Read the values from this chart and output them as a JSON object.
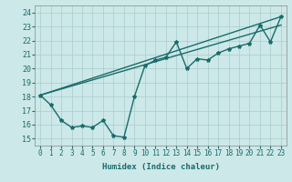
{
  "xlabel": "Humidex (Indice chaleur)",
  "bg_color": "#cce8e8",
  "grid_color": "#aacccc",
  "line_color": "#1a6b6b",
  "xlim": [
    -0.5,
    23.5
  ],
  "ylim": [
    14.5,
    24.5
  ],
  "xticks": [
    0,
    1,
    2,
    3,
    4,
    5,
    6,
    7,
    8,
    9,
    10,
    11,
    12,
    13,
    14,
    15,
    16,
    17,
    18,
    19,
    20,
    21,
    22,
    23
  ],
  "yticks": [
    15,
    16,
    17,
    18,
    19,
    20,
    21,
    22,
    23,
    24
  ],
  "series_zigzag": {
    "x": [
      0,
      1,
      2,
      3,
      4,
      5,
      6,
      7,
      8,
      9,
      10,
      11,
      12,
      13,
      14,
      15,
      16,
      17,
      18,
      19,
      20,
      21,
      22,
      23
    ],
    "y": [
      18.1,
      17.4,
      16.3,
      15.8,
      15.9,
      15.8,
      16.3,
      15.2,
      15.1,
      18.0,
      20.2,
      20.6,
      20.8,
      21.9,
      20.0,
      20.7,
      20.6,
      21.1,
      21.4,
      21.6,
      21.8,
      23.1,
      21.9,
      23.7
    ]
  },
  "series_trend1": {
    "x": [
      0,
      23
    ],
    "y": [
      18.1,
      23.7
    ]
  },
  "series_trend2": {
    "x": [
      0,
      23
    ],
    "y": [
      18.1,
      23.1
    ]
  },
  "marker": "*",
  "marker_size": 3,
  "linewidth": 1.0,
  "tick_fontsize": 5.5,
  "xlabel_fontsize": 6.5
}
